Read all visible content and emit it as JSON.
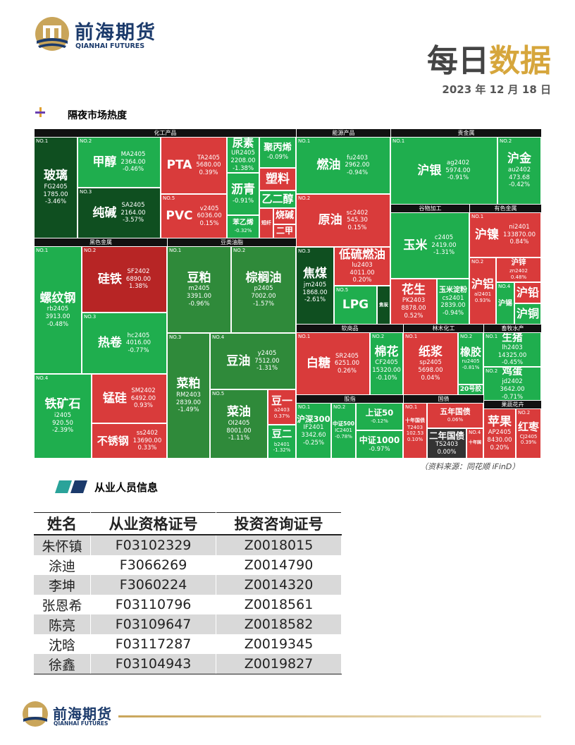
{
  "header": {
    "brand": "前海期货",
    "brand_en": "QIANHAI FUTURES",
    "title_a": "每日",
    "title_b": "数据",
    "date": "2023 年 12 月 18 日"
  },
  "heatmap": {
    "title": "隔夜市场热度",
    "source": "（资料来源：同花顺 iFinD）",
    "sectors": [
      "化工产品",
      "能源产品",
      "贵金属",
      "谷物加工",
      "有色金属",
      "黑色金属",
      "豆类油脂",
      "软商品",
      "林木化工",
      "畜牧水产",
      "股指",
      "国债",
      "果蔬花卉"
    ],
    "tiles": [
      {
        "rank": "NO.1",
        "name": "玻璃",
        "code": "FG2405",
        "price": "1785.00",
        "change": "-3.46%"
      },
      {
        "rank": "NO.2",
        "name": "甲醇",
        "code": "MA2405",
        "price": "2364.00",
        "change": "-0.46%"
      },
      {
        "rank": "NO.3",
        "name": "纯碱",
        "code": "SA2405",
        "price": "2164.00",
        "change": "-3.57%"
      },
      {
        "name": "PTA",
        "code": "TA2405",
        "price": "5680.00",
        "change": "0.39%"
      },
      {
        "rank": "NO.5",
        "name": "PVC",
        "code": "v2405",
        "price": "6036.00",
        "change": "0.15%"
      },
      {
        "name": "尿素",
        "code": "UR2405",
        "price": "2208.00",
        "change": "-1.38%"
      },
      {
        "name": "沥青",
        "change": "-0.91%"
      },
      {
        "name": "苯乙烯",
        "change": "-0.32%"
      },
      {
        "name": "聚丙烯",
        "change": "-0.09%"
      },
      {
        "name": "塑料"
      },
      {
        "name": "乙二醇"
      },
      {
        "name": "短纤"
      },
      {
        "name": "烧碱"
      },
      {
        "name": "二甲"
      },
      {
        "rank": "NO.1",
        "name": "燃油",
        "code": "fu2403",
        "price": "2962.00",
        "change": "-0.94%"
      },
      {
        "rank": "NO.2",
        "name": "原油",
        "code": "sc2402",
        "price": "545.30",
        "change": "0.15%"
      },
      {
        "rank": "NO.3",
        "name": "焦煤",
        "code": "jm2405",
        "price": "1868.00",
        "change": "-2.61%"
      },
      {
        "name": "低硫燃油",
        "code": "lu2403",
        "price": "4011.00",
        "change": "0.20%"
      },
      {
        "rank": "NO.5",
        "name": "LPG"
      },
      {
        "name": "焦炭"
      },
      {
        "rank": "NO.1",
        "name": "沪银",
        "code": "ag2402",
        "price": "5974.00",
        "change": "-0.91%"
      },
      {
        "rank": "NO.2",
        "name": "沪金",
        "code": "au2402",
        "price": "473.68",
        "change": "-0.42%"
      },
      {
        "name": "玉米",
        "code": "c2405",
        "price": "2419.00",
        "change": "-1.31%"
      },
      {
        "name": "花生",
        "code": "PK2403",
        "price": "8878.00",
        "change": "0.52%"
      },
      {
        "name": "玉米淀粉",
        "code": "cs2401",
        "price": "2839.00",
        "change": "-0.94%"
      },
      {
        "rank": "NO.1",
        "name": "沪镍",
        "code": "ni2401",
        "price": "133870.00",
        "change": "0.84%"
      },
      {
        "rank": "NO.2",
        "name": "沪铝",
        "code": "al2401",
        "change": "0.93%"
      },
      {
        "name": "沪锌",
        "code": "zn2402",
        "change": "0.48%"
      },
      {
        "rank": "NO.4",
        "name": "沪锡"
      },
      {
        "name": "沪铅"
      },
      {
        "name": "沪铜"
      },
      {
        "rank": "NO.1",
        "name": "螺纹钢",
        "code": "rb2405",
        "price": "3913.00",
        "change": "-0.48%"
      },
      {
        "rank": "NO.2",
        "name": "硅铁",
        "code": "SF2402",
        "price": "6890.00",
        "change": "1.38%"
      },
      {
        "rank": "NO.3",
        "name": "热卷",
        "code": "hc2405",
        "price": "4016.00",
        "change": "-0.77%"
      },
      {
        "rank": "NO.4",
        "name": "铁矿石",
        "code": "i2405",
        "price": "920.50",
        "change": "-2.39%"
      },
      {
        "name": "锰硅",
        "code": "SM2402",
        "price": "6492.00",
        "change": "0.93%"
      },
      {
        "name": "不锈钢",
        "code": "ss2402",
        "price": "13690.00",
        "change": "0.33%"
      },
      {
        "rank": "NO.1",
        "name": "豆粕",
        "code": "m2405",
        "price": "3391.00",
        "change": "-0.96%"
      },
      {
        "rank": "NO.2",
        "name": "棕榈油",
        "code": "p2405",
        "price": "7002.00",
        "change": "-1.57%"
      },
      {
        "rank": "NO.3",
        "name": "菜粕",
        "code": "RM2403",
        "price": "2839.00",
        "change": "-1.49%"
      },
      {
        "rank": "NO.4",
        "name": "豆油",
        "code": "y2405",
        "price": "7512.00",
        "change": "-1.31%"
      },
      {
        "rank": "NO.5",
        "name": "菜油",
        "code": "OI2405",
        "price": "8001.00",
        "change": "-1.11%"
      },
      {
        "name": "豆一",
        "code": "a2403",
        "change": "0.37%"
      },
      {
        "name": "豆二",
        "code": "b2401",
        "change": "-1.32%"
      },
      {
        "rank": "NO.1",
        "name": "白糖",
        "code": "SR2405",
        "price": "6251.00",
        "change": "0.26%"
      },
      {
        "rank": "NO.2",
        "name": "棉花",
        "code": "CF2405",
        "price": "15320.00",
        "change": "-0.10%"
      },
      {
        "rank": "NO.1",
        "name": "纸浆",
        "code": "sp2405",
        "price": "5698.00",
        "change": "0.04%"
      },
      {
        "rank": "NO.2",
        "name": "橡胶",
        "code": "ru2405",
        "change": "-0.81%"
      },
      {
        "name": "20号胶"
      },
      {
        "rank": "NO.1",
        "name": "生猪",
        "code": "lh2403",
        "price": "14325.00",
        "change": "-0.45%"
      },
      {
        "rank": "NO.2",
        "name": "鸡蛋",
        "code": "jd2402",
        "price": "3642.00",
        "change": "-0.71%"
      },
      {
        "rank": "NO.1",
        "name": "沪深300",
        "code": "IF2401",
        "price": "3342.60",
        "change": "-0.25%"
      },
      {
        "rank": "NO.2",
        "name": "中证500",
        "code": "IC2401",
        "change": "-0.78%"
      },
      {
        "name": "上证50",
        "change": "-0.12%"
      },
      {
        "name": "中证1000",
        "change": "-0.97%"
      },
      {
        "rank": "NO.1",
        "name": "十年国债",
        "code": "T2403",
        "price": "102.53",
        "change": "0.10%"
      },
      {
        "name": "五年国债",
        "change": "0.06%"
      },
      {
        "name": "二年国债",
        "code": "TS2403",
        "change": "0.00%"
      },
      {
        "rank": "NO.4",
        "name": "十年国"
      },
      {
        "name": "苹果",
        "code": "AP2405",
        "price": "8430.00",
        "change": "0.20%"
      },
      {
        "rank": "NO.2",
        "name": "红枣",
        "code": "CJ2405",
        "change": "0.39%"
      }
    ]
  },
  "staff": {
    "title": "从业人员信息",
    "header": [
      "姓名",
      "从业资格证号",
      "投资咨询证号"
    ],
    "rows": [
      [
        "朱怀镇",
        "F03102329",
        "Z0018015"
      ],
      [
        "涂迪",
        "F3066269",
        "Z0014790"
      ],
      [
        "李坤",
        "F3060224",
        "Z0014320"
      ],
      [
        "张恩希",
        "F03110796",
        "Z0018561"
      ],
      [
        "陈亮",
        "F03109647",
        "Z0018582"
      ],
      [
        "沈晗",
        "F03117287",
        "Z0019345"
      ],
      [
        "徐鑫",
        "F03104943",
        "Z0019827"
      ]
    ]
  },
  "footer": {
    "brand": "前海期货",
    "brand_en": "QIANHAI FUTURES"
  }
}
